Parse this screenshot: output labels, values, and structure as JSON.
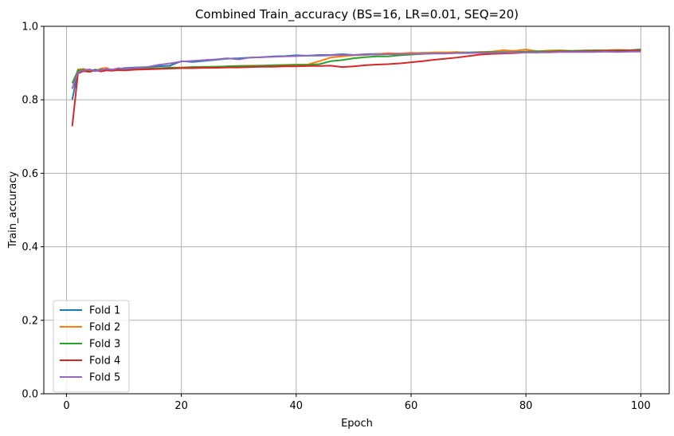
{
  "chart_data": {
    "type": "line",
    "title": "Combined Train_accuracy (BS=16, LR=0.01, SEQ=20)",
    "xlabel": "Epoch",
    "ylabel": "Train_accuracy",
    "xlim": [
      -3.95,
      104.95
    ],
    "ylim": [
      0.0,
      1.0
    ],
    "xticks": [
      0,
      20,
      40,
      60,
      80,
      100
    ],
    "yticks": [
      0.0,
      0.2,
      0.4,
      0.6,
      0.8,
      1.0
    ],
    "xtick_labels": [
      "0",
      "20",
      "40",
      "60",
      "80",
      "100"
    ],
    "ytick_labels": [
      "0.0",
      "0.2",
      "0.4",
      "0.6",
      "0.8",
      "1.0"
    ],
    "grid": true,
    "legend_position": "lower-left",
    "series": [
      {
        "name": "Fold 1",
        "color": "#1f77b4",
        "x": [
          1,
          2,
          3,
          4,
          5,
          6,
          7,
          8,
          9,
          10,
          12,
          14,
          16,
          18,
          20,
          22,
          24,
          26,
          28,
          30,
          32,
          34,
          36,
          38,
          40,
          42,
          44,
          46,
          48,
          50,
          52,
          54,
          56,
          58,
          60,
          62,
          64,
          66,
          68,
          70,
          72,
          74,
          76,
          78,
          80,
          82,
          84,
          86,
          88,
          90,
          92,
          94,
          96,
          98,
          100
        ],
        "y": [
          0.8,
          0.878,
          0.88,
          0.879,
          0.882,
          0.88,
          0.884,
          0.882,
          0.884,
          0.886,
          0.888,
          0.889,
          0.891,
          0.893,
          0.905,
          0.903,
          0.906,
          0.909,
          0.912,
          0.913,
          0.915,
          0.916,
          0.918,
          0.919,
          0.921,
          0.92,
          0.922,
          0.922,
          0.924,
          0.922,
          0.924,
          0.925,
          0.926,
          0.926,
          0.927,
          0.928,
          0.928,
          0.928,
          0.929,
          0.929,
          0.93,
          0.929,
          0.93,
          0.93,
          0.931,
          0.931,
          0.931,
          0.932,
          0.932,
          0.932,
          0.932,
          0.933,
          0.933,
          0.933,
          0.934
        ]
      },
      {
        "name": "Fold 2",
        "color": "#ff7f0e",
        "x": [
          1,
          2,
          3,
          4,
          5,
          6,
          7,
          8,
          9,
          10,
          12,
          14,
          16,
          18,
          20,
          22,
          24,
          26,
          28,
          30,
          32,
          34,
          36,
          38,
          40,
          42,
          44,
          46,
          48,
          50,
          52,
          54,
          56,
          58,
          60,
          62,
          64,
          66,
          68,
          70,
          72,
          74,
          76,
          78,
          80,
          82,
          84,
          86,
          88,
          90,
          92,
          94,
          96,
          98,
          100
        ],
        "y": [
          0.83,
          0.883,
          0.884,
          0.88,
          0.878,
          0.885,
          0.887,
          0.879,
          0.884,
          0.882,
          0.885,
          0.884,
          0.886,
          0.887,
          0.888,
          0.889,
          0.89,
          0.89,
          0.891,
          0.892,
          0.893,
          0.893,
          0.894,
          0.895,
          0.896,
          0.896,
          0.905,
          0.915,
          0.918,
          0.921,
          0.922,
          0.924,
          0.927,
          0.926,
          0.928,
          0.927,
          0.929,
          0.929,
          0.93,
          0.928,
          0.93,
          0.931,
          0.935,
          0.933,
          0.937,
          0.932,
          0.934,
          0.935,
          0.933,
          0.934,
          0.935,
          0.935,
          0.936,
          0.935,
          0.936
        ]
      },
      {
        "name": "Fold 3",
        "color": "#2ca02c",
        "x": [
          1,
          2,
          3,
          4,
          5,
          6,
          7,
          8,
          9,
          10,
          12,
          14,
          16,
          18,
          20,
          22,
          24,
          26,
          28,
          30,
          32,
          34,
          36,
          38,
          40,
          42,
          44,
          46,
          48,
          50,
          52,
          54,
          56,
          58,
          60,
          62,
          64,
          66,
          68,
          70,
          72,
          74,
          76,
          78,
          80,
          82,
          84,
          86,
          88,
          90,
          92,
          94,
          96,
          98,
          100
        ],
        "y": [
          0.845,
          0.88,
          0.882,
          0.877,
          0.88,
          0.882,
          0.883,
          0.881,
          0.883,
          0.884,
          0.885,
          0.886,
          0.885,
          0.888,
          0.887,
          0.889,
          0.889,
          0.89,
          0.891,
          0.892,
          0.892,
          0.893,
          0.894,
          0.894,
          0.895,
          0.895,
          0.897,
          0.905,
          0.908,
          0.913,
          0.916,
          0.918,
          0.918,
          0.921,
          0.923,
          0.925,
          0.926,
          0.926,
          0.928,
          0.928,
          0.929,
          0.93,
          0.929,
          0.93,
          0.931,
          0.932,
          0.932,
          0.933,
          0.933,
          0.934,
          0.934,
          0.934,
          0.935,
          0.935,
          0.937
        ]
      },
      {
        "name": "Fold 4",
        "color": "#d62728",
        "x": [
          1,
          2,
          3,
          4,
          5,
          6,
          7,
          8,
          9,
          10,
          12,
          14,
          16,
          18,
          20,
          22,
          24,
          26,
          28,
          30,
          32,
          34,
          36,
          38,
          40,
          42,
          44,
          46,
          48,
          50,
          52,
          54,
          56,
          58,
          60,
          62,
          64,
          66,
          68,
          70,
          72,
          74,
          76,
          78,
          80,
          82,
          84,
          86,
          88,
          90,
          92,
          94,
          96,
          98,
          100
        ],
        "y": [
          0.728,
          0.872,
          0.878,
          0.876,
          0.88,
          0.877,
          0.88,
          0.879,
          0.881,
          0.88,
          0.882,
          0.883,
          0.884,
          0.885,
          0.886,
          0.886,
          0.887,
          0.887,
          0.888,
          0.888,
          0.889,
          0.89,
          0.89,
          0.891,
          0.891,
          0.892,
          0.892,
          0.893,
          0.889,
          0.891,
          0.894,
          0.896,
          0.897,
          0.899,
          0.902,
          0.905,
          0.909,
          0.912,
          0.915,
          0.919,
          0.923,
          0.925,
          0.926,
          0.927,
          0.929,
          0.929,
          0.93,
          0.931,
          0.931,
          0.932,
          0.932,
          0.933,
          0.933,
          0.934,
          0.934
        ]
      },
      {
        "name": "Fold 5",
        "color": "#9467bd",
        "x": [
          1,
          2,
          3,
          4,
          5,
          6,
          7,
          8,
          9,
          10,
          12,
          14,
          16,
          18,
          20,
          22,
          24,
          26,
          28,
          30,
          32,
          34,
          36,
          38,
          40,
          42,
          44,
          46,
          48,
          50,
          52,
          54,
          56,
          58,
          60,
          62,
          64,
          66,
          68,
          70,
          72,
          74,
          76,
          78,
          80,
          82,
          84,
          86,
          88,
          90,
          92,
          94,
          96,
          98,
          100
        ],
        "y": [
          0.83,
          0.875,
          0.88,
          0.883,
          0.878,
          0.881,
          0.884,
          0.882,
          0.886,
          0.884,
          0.887,
          0.889,
          0.895,
          0.899,
          0.904,
          0.906,
          0.908,
          0.91,
          0.913,
          0.91,
          0.915,
          0.916,
          0.917,
          0.918,
          0.919,
          0.92,
          0.92,
          0.921,
          0.922,
          0.922,
          0.923,
          0.923,
          0.924,
          0.924,
          0.925,
          0.925,
          0.926,
          0.926,
          0.927,
          0.927,
          0.928,
          0.928,
          0.928,
          0.929,
          0.929,
          0.929,
          0.929,
          0.93,
          0.93,
          0.93,
          0.93,
          0.931,
          0.93,
          0.931,
          0.931
        ]
      }
    ]
  }
}
